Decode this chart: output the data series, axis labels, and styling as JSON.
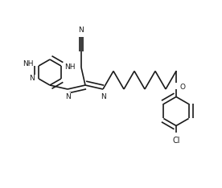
{
  "background_color": "#ffffff",
  "line_color": "#1a1a1a",
  "line_width": 1.2,
  "font_size": 6.5,
  "figsize": [
    2.76,
    2.34
  ],
  "dpi": 100,
  "xlim": [
    0,
    276
  ],
  "ylim": [
    0,
    234
  ]
}
